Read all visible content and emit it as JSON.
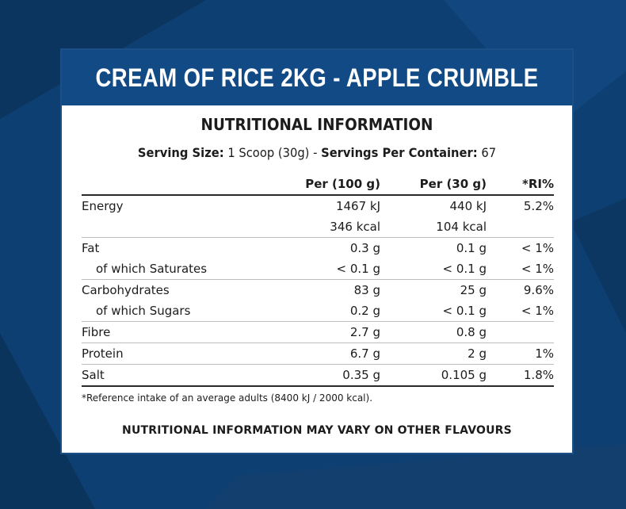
{
  "colors": {
    "background": "#0d3d6e",
    "banner": "#124a85",
    "card": "#ffffff"
  },
  "product_title": "CREAM OF RICE 2KG - APPLE CRUMBLE",
  "section_heading": "NUTRITIONAL INFORMATION",
  "serving": {
    "size_label": "Serving Size:",
    "size_value": "1 Scoop (30g) -",
    "servings_label": "Servings Per Container:",
    "servings_value": "67"
  },
  "table": {
    "headers": [
      "",
      "Per (100 g)",
      "Per (30 g)",
      "*RI%"
    ],
    "rows": [
      {
        "name": "Energy",
        "per100": "1467 kJ",
        "per30": "440 kJ",
        "ri": "5.2%"
      },
      {
        "name": "",
        "per100": "346 kcal",
        "per30": "104 kcal",
        "ri": ""
      },
      {
        "name": "Fat",
        "per100": "0.3 g",
        "per30": "0.1 g",
        "ri": "< 1%"
      },
      {
        "name": "of which Saturates",
        "per100": "< 0.1 g",
        "per30": "< 0.1 g",
        "ri": "< 1%"
      },
      {
        "name": "Carbohydrates",
        "per100": "83 g",
        "per30": "25 g",
        "ri": "9.6%"
      },
      {
        "name": "of which Sugars",
        "per100": "0.2 g",
        "per30": "< 0.1 g",
        "ri": "< 1%"
      },
      {
        "name": "Fibre",
        "per100": "2.7 g",
        "per30": "0.8 g",
        "ri": ""
      },
      {
        "name": "Protein",
        "per100": "6.7 g",
        "per30": "2 g",
        "ri": "1%"
      },
      {
        "name": "Salt",
        "per100": "0.35 g",
        "per30": "0.105 g",
        "ri": "1.8%"
      }
    ]
  },
  "footnote": "*Reference intake of an average adults (8400 kJ / 2000 kcal).",
  "disclaimer": "NUTRITIONAL INFORMATION MAY VARY ON OTHER FLAVOURS"
}
